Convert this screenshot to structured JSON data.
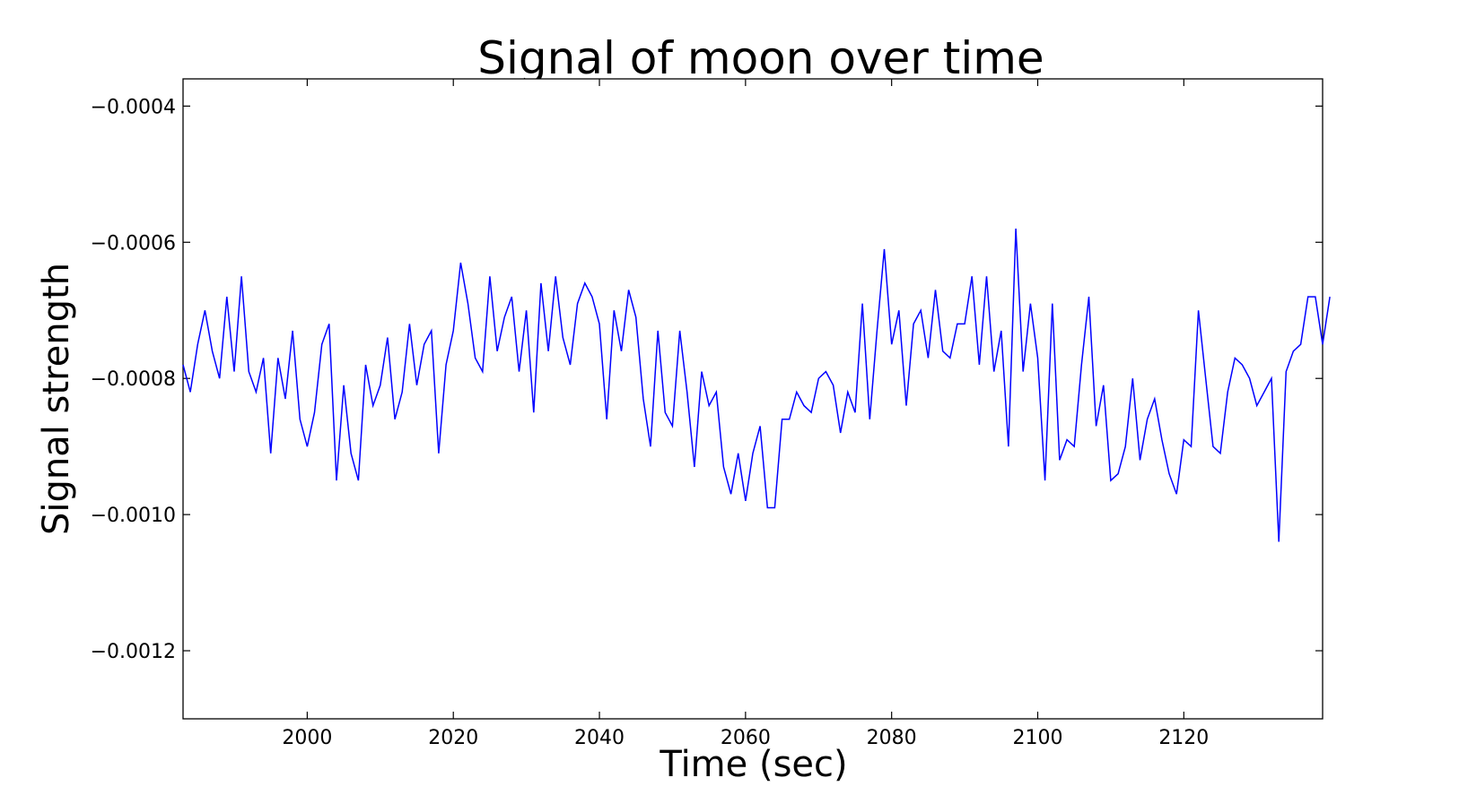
{
  "chart_data": {
    "type": "line",
    "title": "Signal of moon over time",
    "xlabel": "Time (sec)",
    "ylabel": "Signal strength",
    "xlim": [
      1983,
      2139
    ],
    "ylim": [
      -0.0013,
      -0.00036
    ],
    "xticks": [
      2000,
      2020,
      2040,
      2060,
      2080,
      2100,
      2120
    ],
    "xtick_labels": [
      "2000",
      "2020",
      "2040",
      "2060",
      "2080",
      "2100",
      "2120"
    ],
    "yticks": [
      -0.0004,
      -0.0006,
      -0.0008,
      -0.001,
      -0.0012
    ],
    "ytick_labels": [
      "−0.0004",
      "−0.0006",
      "−0.0008",
      "−0.0010",
      "−0.0012"
    ],
    "grid": false,
    "line_color": "#0000ff",
    "series": [
      {
        "x_start": 1983,
        "x_step": 1,
        "values": [
          -0.00078,
          -0.00082,
          -0.00075,
          -0.0007,
          -0.00076,
          -0.0008,
          -0.00068,
          -0.00079,
          -0.00065,
          -0.00079,
          -0.00082,
          -0.00077,
          -0.00091,
          -0.00077,
          -0.00083,
          -0.00073,
          -0.00086,
          -0.0009,
          -0.00085,
          -0.00075,
          -0.00072,
          -0.00095,
          -0.00081,
          -0.00091,
          -0.00095,
          -0.00078,
          -0.00084,
          -0.00081,
          -0.00074,
          -0.00086,
          -0.00082,
          -0.00072,
          -0.00081,
          -0.00075,
          -0.00073,
          -0.00091,
          -0.00078,
          -0.00073,
          -0.00063,
          -0.00069,
          -0.00077,
          -0.00079,
          -0.00065,
          -0.00076,
          -0.00071,
          -0.00068,
          -0.00079,
          -0.0007,
          -0.00085,
          -0.00066,
          -0.00076,
          -0.00065,
          -0.00074,
          -0.00078,
          -0.00069,
          -0.00066,
          -0.00068,
          -0.00072,
          -0.00086,
          -0.0007,
          -0.00076,
          -0.00067,
          -0.00071,
          -0.00083,
          -0.0009,
          -0.00073,
          -0.00085,
          -0.00087,
          -0.00073,
          -0.00082,
          -0.00093,
          -0.00079,
          -0.00084,
          -0.00082,
          -0.00093,
          -0.00097,
          -0.00091,
          -0.00098,
          -0.00091,
          -0.00087,
          -0.00099,
          -0.00099,
          -0.00086,
          -0.00086,
          -0.00082,
          -0.00084,
          -0.00085,
          -0.0008,
          -0.00079,
          -0.00081,
          -0.00088,
          -0.00082,
          -0.00085,
          -0.00069,
          -0.00086,
          -0.00073,
          -0.00061,
          -0.00075,
          -0.0007,
          -0.00084,
          -0.00072,
          -0.0007,
          -0.00077,
          -0.00067,
          -0.00076,
          -0.00077,
          -0.00072,
          -0.00072,
          -0.00065,
          -0.00078,
          -0.00065,
          -0.00079,
          -0.00073,
          -0.0009,
          -0.00058,
          -0.00079,
          -0.00069,
          -0.00077,
          -0.00095,
          -0.00069,
          -0.00092,
          -0.00089,
          -0.0009,
          -0.00078,
          -0.00068,
          -0.00087,
          -0.00081,
          -0.00095,
          -0.00094,
          -0.0009,
          -0.0008,
          -0.00092,
          -0.00086,
          -0.00083,
          -0.00089,
          -0.00094,
          -0.00097,
          -0.00089,
          -0.0009,
          -0.0007,
          -0.0008,
          -0.0009,
          -0.00091,
          -0.00082,
          -0.00077,
          -0.00078,
          -0.0008,
          -0.00084,
          -0.00082,
          -0.0008,
          -0.00104,
          -0.00079,
          -0.00076,
          -0.00075,
          -0.00068,
          -0.00068,
          -0.00075,
          -0.00068
        ]
      }
    ]
  }
}
